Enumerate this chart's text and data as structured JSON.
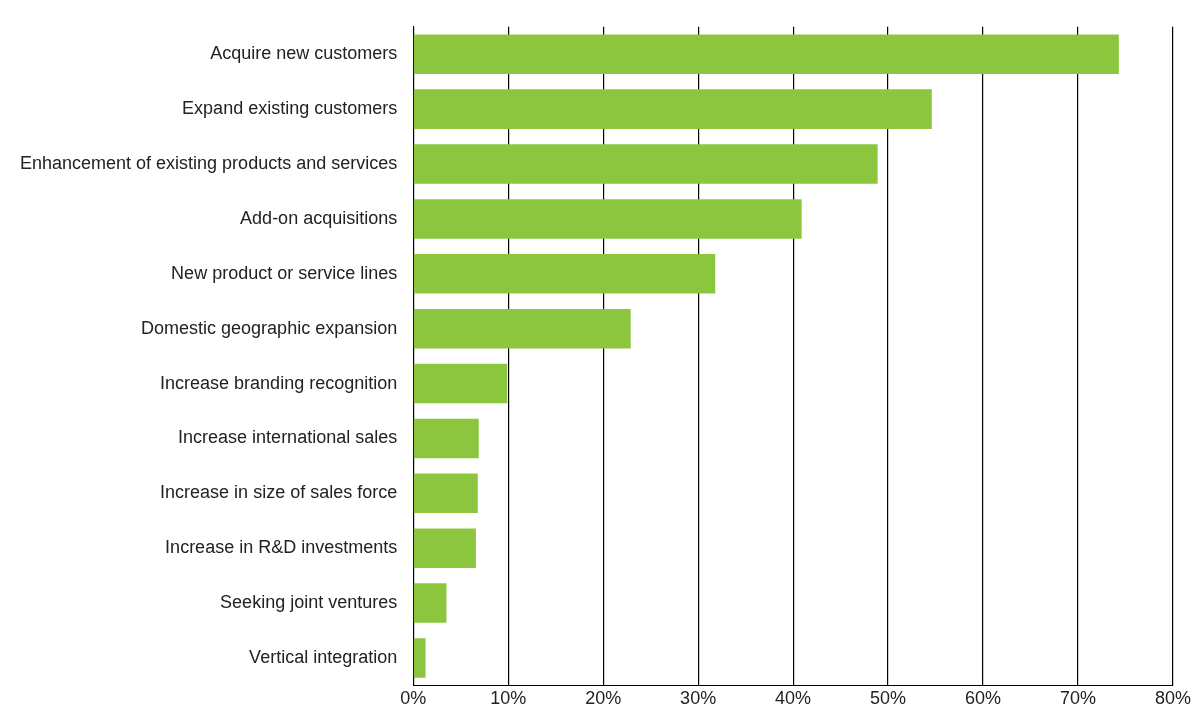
{
  "chart_data": {
    "type": "bar",
    "orientation": "horizontal",
    "categories": [
      "Acquire new customers",
      "Expand existing customers",
      "Enhancement of existing products and services",
      "Add-on acquisitions",
      "New product or service lines",
      "Domestic geographic expansion",
      "Increase branding recognition",
      "Increase international sales",
      "Increase in size of sales force",
      "Increase in R&D investments",
      "Seeking joint ventures",
      "Vertical integration"
    ],
    "values": [
      74.3,
      54.6,
      48.9,
      40.9,
      31.8,
      22.9,
      9.9,
      6.9,
      6.8,
      6.6,
      3.5,
      1.3
    ],
    "color": "#8cc63f",
    "xlim": [
      0,
      80
    ],
    "xticks": [
      {
        "value": 0,
        "label": "0%"
      },
      {
        "value": 10,
        "label": "10%"
      },
      {
        "value": 20,
        "label": "20%"
      },
      {
        "value": 30,
        "label": "30%"
      },
      {
        "value": 40,
        "label": "40%"
      },
      {
        "value": 50,
        "label": "50%"
      },
      {
        "value": 60,
        "label": "60%"
      },
      {
        "value": 70,
        "label": "70%"
      },
      {
        "value": 80,
        "label": "80%"
      }
    ],
    "grid": "x",
    "legend": false
  }
}
